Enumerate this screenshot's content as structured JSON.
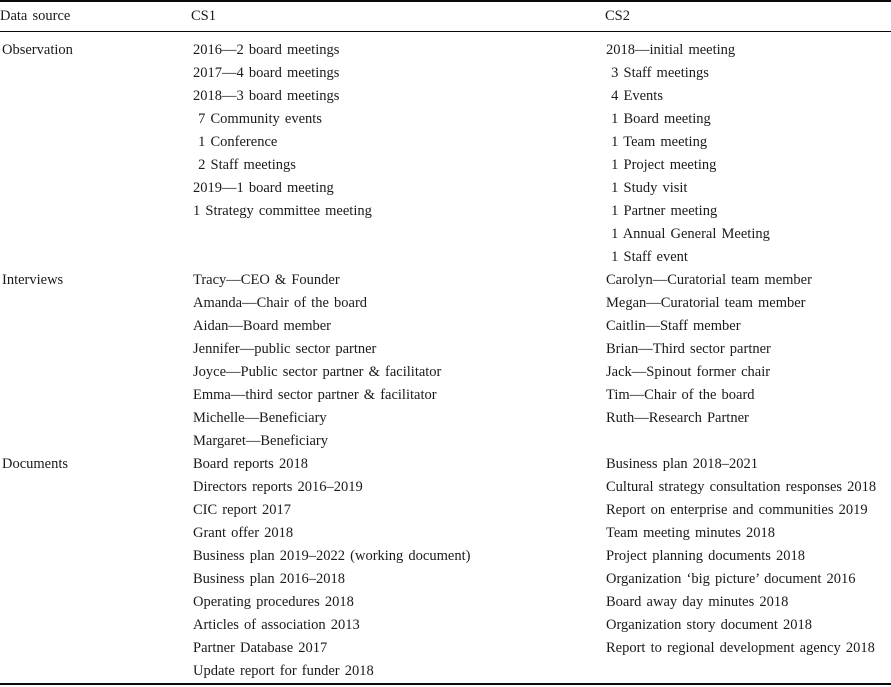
{
  "table": {
    "columns": [
      "Data source",
      "CS1",
      "CS2"
    ],
    "sections": [
      {
        "label": "Observation",
        "cs1": [
          "2016—2 board meetings",
          "2017—4 board meetings",
          "2018—3 board meetings",
          " 7 Community events",
          " 1 Conference",
          " 2 Staff meetings",
          "2019—1 board meeting",
          "1 Strategy committee meeting"
        ],
        "cs2": [
          "2018—initial meeting",
          " 3 Staff meetings",
          " 4 Events",
          " 1 Board meeting",
          " 1 Team meeting",
          " 1 Project meeting",
          " 1 Study visit",
          " 1 Partner meeting",
          " 1 Annual General Meeting",
          " 1 Staff event"
        ]
      },
      {
        "label": "Interviews",
        "cs1": [
          "Tracy—CEO & Founder",
          "Amanda—Chair of the board",
          "Aidan—Board member",
          "Jennifer—public sector partner",
          "Joyce—Public sector partner & facilitator",
          "Emma—third sector partner & facilitator",
          "Michelle—Beneficiary",
          "Margaret—Beneficiary"
        ],
        "cs2": [
          "Carolyn—Curatorial team member",
          "Megan—Curatorial team member",
          "Caitlin—Staff member",
          "Brian—Third sector partner",
          "Jack—Spinout former chair",
          "Tim—Chair of the board",
          "Ruth—Research Partner"
        ]
      },
      {
        "label": "Documents",
        "cs1": [
          "Board reports 2018",
          "Directors reports 2016–2019",
          "CIC report 2017",
          "Grant offer 2018",
          "Business plan 2019–2022 (working document)",
          "Business plan 2016–2018",
          "Operating procedures 2018",
          "Articles of association 2013",
          "Partner Database 2017",
          "Update report for funder 2018"
        ],
        "cs2": [
          "Business plan 2018–2021",
          "Cultural strategy consultation responses 2018",
          "Report on enterprise and communities 2019",
          "Team meeting minutes 2018",
          "Project planning documents 2018",
          "Organization ‘big picture’ document 2016",
          "Board away day minutes 2018",
          "Organization story document 2018",
          "Report to regional development agency 2018"
        ]
      }
    ]
  }
}
